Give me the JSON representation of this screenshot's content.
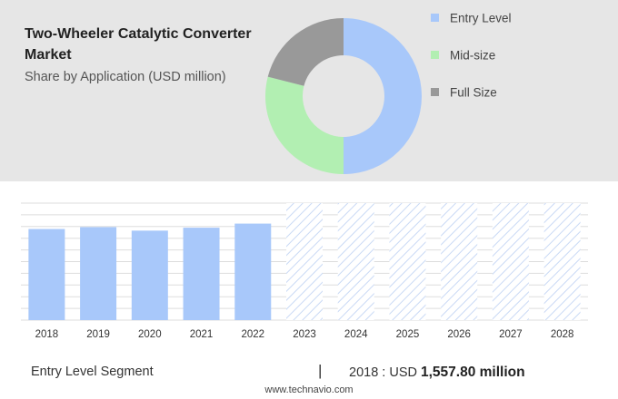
{
  "header": {
    "title": "Two-Wheeler Catalytic Converter Market",
    "subtitle": "Share by Application (USD million)"
  },
  "legend": [
    {
      "label": "Entry Level",
      "color": "#a8c8fa"
    },
    {
      "label": "Mid-size",
      "color": "#b2efb2"
    },
    {
      "label": "Full Size",
      "color": "#999999"
    }
  ],
  "chart_data": [
    {
      "type": "pie",
      "title": "Share by Application (USD million)",
      "donut": true,
      "categories": [
        "Entry Level",
        "Mid-size",
        "Full Size"
      ],
      "values": [
        50,
        29,
        21
      ],
      "colors": [
        "#a8c8fa",
        "#b2efb2",
        "#999999"
      ]
    },
    {
      "type": "bar",
      "categories": [
        "2018",
        "2019",
        "2020",
        "2021",
        "2022",
        "2023",
        "2024",
        "2025",
        "2026",
        "2027",
        "2028"
      ],
      "values": [
        1557.8,
        1590,
        1530,
        1580,
        1650,
        null,
        null,
        null,
        null,
        null,
        null
      ],
      "forecast_categories": [
        "2023",
        "2024",
        "2025",
        "2026",
        "2027",
        "2028"
      ],
      "ylim": [
        0,
        2000
      ],
      "grid": true,
      "bar_color": "#a8c8fa"
    }
  ],
  "footer": {
    "segment": "Entry Level Segment",
    "separator": "|",
    "value_prefix": "2018 : USD",
    "value": "1,557.80 million"
  },
  "watermark": "www.technavio.com"
}
